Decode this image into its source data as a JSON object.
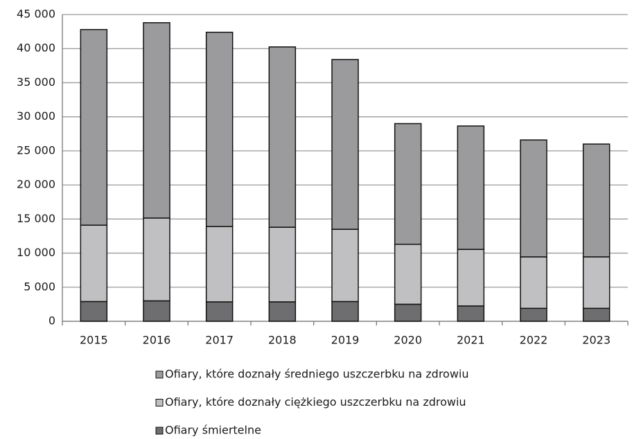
{
  "chart_data": {
    "type": "stacked_bar",
    "categories": [
      "2015",
      "2016",
      "2017",
      "2018",
      "2019",
      "2020",
      "2021",
      "2022",
      "2023"
    ],
    "series": [
      {
        "name": "Ofiary śmiertelne",
        "color": "#6e6e70",
        "values": [
          2900,
          3000,
          2850,
          2850,
          2900,
          2500,
          2250,
          1900,
          1900
        ]
      },
      {
        "name": "Ofiary, które doznały ciężkiego uszczerbku na zdrowiu",
        "color": "#c0c0c2",
        "values": [
          11200,
          12150,
          11050,
          10950,
          10600,
          8800,
          8300,
          7550,
          7550
        ]
      },
      {
        "name": "Ofiary, które doznały średniego uszczerbku na zdrowiu",
        "color": "#9b9b9d",
        "values": [
          28700,
          28650,
          28500,
          26450,
          24900,
          17700,
          18100,
          17150,
          16550
        ]
      }
    ],
    "ylim": [
      0,
      45000
    ],
    "yticks": [
      0,
      {
        "value": 5000,
        "label": "5 000"
      },
      {
        "value": 10000,
        "label": "10 000"
      },
      {
        "value": 15000,
        "label": "15 000"
      },
      {
        "value": 20000,
        "label": "20 000"
      },
      {
        "value": 25000,
        "label": "25 000"
      },
      {
        "value": 30000,
        "label": "30 000"
      },
      {
        "value": 35000,
        "label": "35 000"
      },
      {
        "value": 40000,
        "label": "40 000"
      },
      {
        "value": 45000,
        "label": "45 000"
      }
    ],
    "grid": true,
    "legend": "bottom"
  }
}
